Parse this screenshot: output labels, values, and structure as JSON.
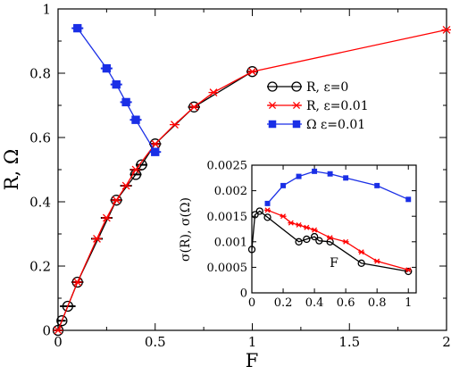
{
  "chart_data": [
    {
      "type": "line",
      "role": "main",
      "xlabel": "F",
      "ylabel": "R, Ω",
      "xlim": [
        0,
        2
      ],
      "ylim": [
        0,
        1
      ],
      "xticks": [
        0,
        0.5,
        1,
        1.5,
        2
      ],
      "yticks": [
        0,
        0.2,
        0.4,
        0.6,
        0.8,
        1
      ],
      "xtick_labels": [
        "0",
        "0.5",
        "1",
        "1.5",
        "2"
      ],
      "ytick_labels": [
        "0",
        "0.2",
        "0.4",
        "0.6",
        "0.8",
        "1"
      ],
      "legend_position": "right",
      "grid": false,
      "series": [
        {
          "name": "R, ε=0",
          "color": "#000000",
          "marker": "open-circle",
          "points": [
            [
              0.0,
              0.0
            ],
            [
              0.02,
              0.03
            ],
            [
              0.05,
              0.075
            ],
            [
              0.1,
              0.15
            ],
            [
              0.3,
              0.405
            ],
            [
              0.4,
              0.485
            ],
            [
              0.43,
              0.515
            ],
            [
              0.5,
              0.58
            ],
            [
              0.7,
              0.695
            ],
            [
              1.0,
              0.805
            ]
          ],
          "xerr": [
            0.02,
            0.02,
            0.04,
            0.03,
            0.03,
            0.03,
            0.03,
            0.03,
            0.03,
            0.03
          ]
        },
        {
          "name": "R, ε=0.01",
          "color": "#ff0000",
          "marker": "asterisk",
          "points": [
            [
              0.0,
              0.0
            ],
            [
              0.1,
              0.15
            ],
            [
              0.2,
              0.285
            ],
            [
              0.25,
              0.35
            ],
            [
              0.3,
              0.405
            ],
            [
              0.35,
              0.45
            ],
            [
              0.4,
              0.5
            ],
            [
              0.5,
              0.58
            ],
            [
              0.6,
              0.64
            ],
            [
              0.7,
              0.695
            ],
            [
              0.8,
              0.74
            ],
            [
              1.0,
              0.805
            ],
            [
              2.0,
              0.935
            ]
          ],
          "xerr": [
            0.0,
            0.03,
            0.03,
            0.03,
            0.03,
            0.03,
            0.03,
            0.03,
            0.0,
            0.03,
            0.0,
            0.0,
            0.0
          ]
        },
        {
          "name": "Ω ε=0.01",
          "color": "#1a2fe6",
          "marker": "filled-square",
          "points": [
            [
              0.1,
              0.94
            ],
            [
              0.25,
              0.815
            ],
            [
              0.3,
              0.765
            ],
            [
              0.35,
              0.71
            ],
            [
              0.4,
              0.655
            ],
            [
              0.5,
              0.555
            ]
          ],
          "xerr": [
            0.03,
            0.03,
            0.03,
            0.03,
            0.03,
            0.03
          ]
        }
      ]
    },
    {
      "type": "line",
      "role": "inset",
      "xlabel": "F",
      "ylabel": "σ(R), σ(Ω)",
      "xlim": [
        0,
        1.05
      ],
      "ylim": [
        0,
        0.0025
      ],
      "xticks": [
        0,
        0.2,
        0.4,
        0.6,
        0.8,
        1
      ],
      "yticks": [
        0,
        0.0005,
        0.001,
        0.0015,
        0.002,
        0.0025
      ],
      "xtick_labels": [
        "0",
        "0.2",
        "0.4",
        "0.6",
        "0.8",
        "1"
      ],
      "ytick_labels": [
        "0",
        "0.0005",
        "0.001",
        "0.0015",
        "0.002",
        "0.0025"
      ],
      "grid": false,
      "series": [
        {
          "name": "R, ε=0",
          "color": "#000000",
          "marker": "open-circle",
          "points": [
            [
              0.0,
              0.00085
            ],
            [
              0.02,
              0.00153
            ],
            [
              0.05,
              0.0016
            ],
            [
              0.1,
              0.00148
            ],
            [
              0.3,
              0.001
            ],
            [
              0.35,
              0.00105
            ],
            [
              0.4,
              0.0011
            ],
            [
              0.43,
              0.00102
            ],
            [
              0.5,
              0.001
            ],
            [
              0.7,
              0.00058
            ],
            [
              1.0,
              0.00042
            ]
          ]
        },
        {
          "name": "R, ε=0.01",
          "color": "#ff0000",
          "marker": "asterisk",
          "points": [
            [
              0.1,
              0.00162
            ],
            [
              0.2,
              0.0015
            ],
            [
              0.25,
              0.00137
            ],
            [
              0.3,
              0.00133
            ],
            [
              0.35,
              0.00128
            ],
            [
              0.4,
              0.00123
            ],
            [
              0.5,
              0.00108
            ],
            [
              0.6,
              0.001
            ],
            [
              0.7,
              0.0008
            ],
            [
              0.8,
              0.00062
            ],
            [
              1.0,
              0.00045
            ]
          ]
        },
        {
          "name": "Ω ε=0.01",
          "color": "#1a2fe6",
          "marker": "filled-square",
          "points": [
            [
              0.1,
              0.00175
            ],
            [
              0.2,
              0.0021
            ],
            [
              0.3,
              0.00228
            ],
            [
              0.4,
              0.00238
            ],
            [
              0.5,
              0.00233
            ],
            [
              0.6,
              0.00225
            ],
            [
              0.8,
              0.0021
            ],
            [
              1.0,
              0.00183
            ]
          ]
        }
      ]
    }
  ]
}
